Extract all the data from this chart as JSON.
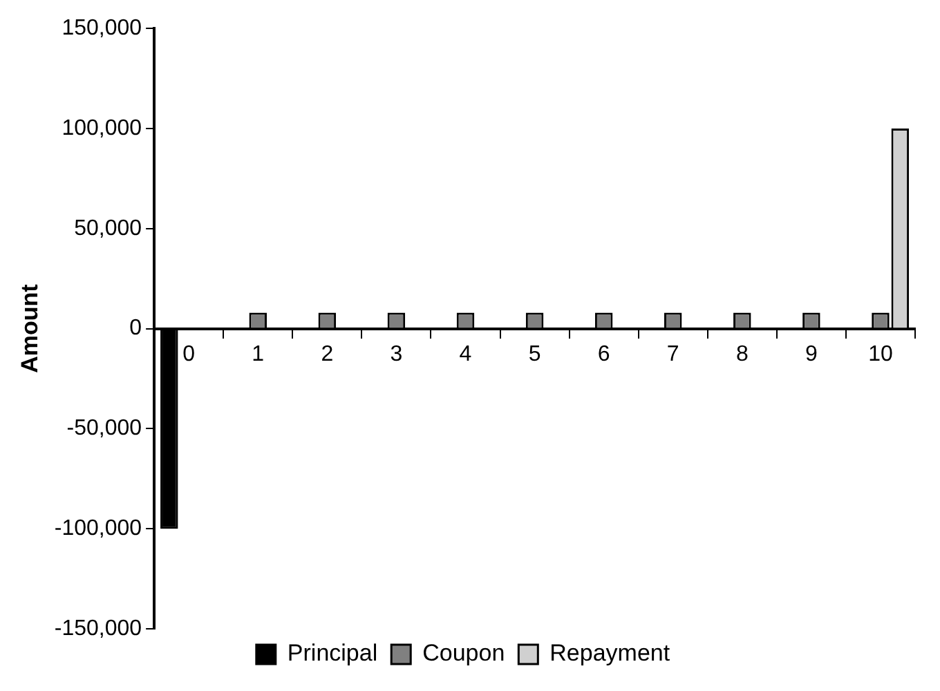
{
  "chart_data": {
    "type": "bar",
    "ylabel": "Amount",
    "categories": [
      "0",
      "1",
      "2",
      "3",
      "4",
      "5",
      "6",
      "7",
      "8",
      "9",
      "10"
    ],
    "series": [
      {
        "name": "Principal",
        "color": "#000000",
        "values": [
          -100000,
          null,
          null,
          null,
          null,
          null,
          null,
          null,
          null,
          null,
          null
        ]
      },
      {
        "name": "Coupon",
        "color": "#808080",
        "values": [
          null,
          8000,
          8000,
          8000,
          8000,
          8000,
          8000,
          8000,
          8000,
          8000,
          8000
        ]
      },
      {
        "name": "Repayment",
        "color": "#d0d0d0",
        "values": [
          null,
          null,
          null,
          null,
          null,
          null,
          null,
          null,
          null,
          null,
          100000
        ]
      }
    ],
    "ylim": [
      -150000,
      150000
    ],
    "yticks": [
      {
        "value": -150000,
        "label": "-150,000"
      },
      {
        "value": -100000,
        "label": "-100,000"
      },
      {
        "value": -50000,
        "label": "-50,000"
      },
      0,
      {
        "value": 50000,
        "label": "50,000"
      },
      {
        "value": 100000,
        "label": "100,000"
      },
      {
        "value": 150000,
        "label": "150,000"
      }
    ],
    "grid": false,
    "legend": "bottom"
  }
}
